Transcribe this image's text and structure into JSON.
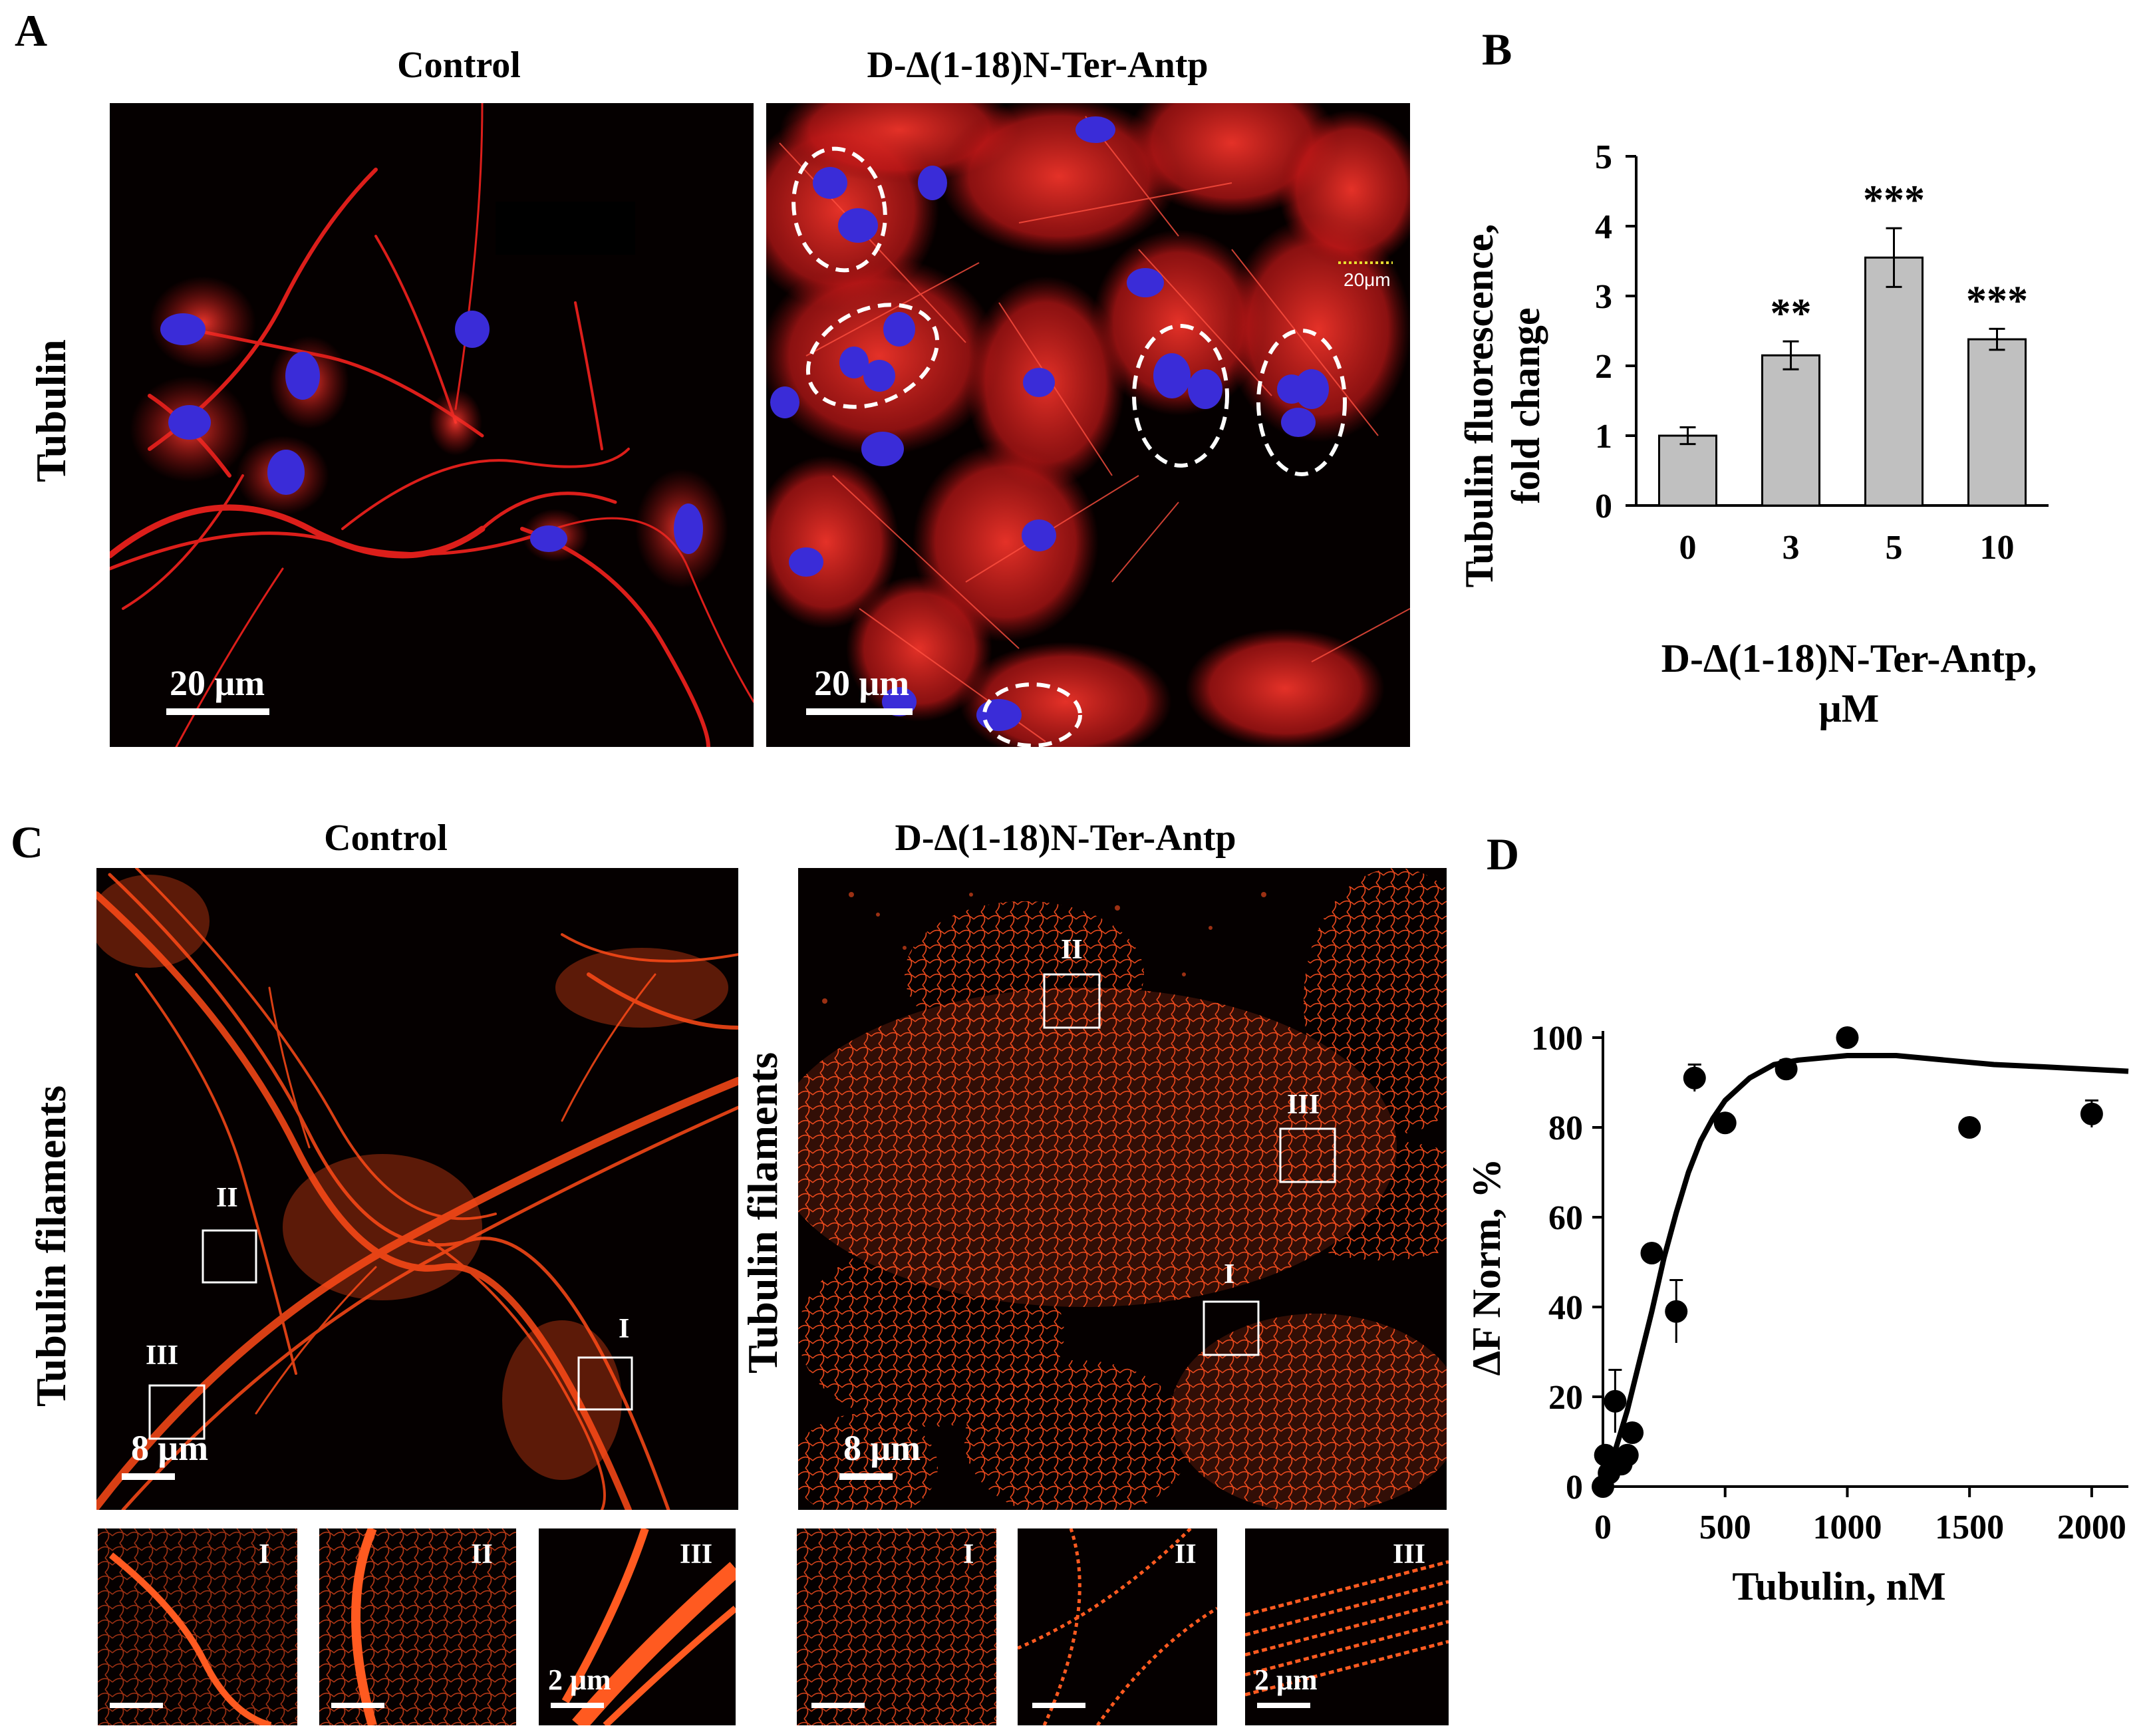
{
  "panels": {
    "A": {
      "letter": "A",
      "row_label": "Tubulin",
      "left_title": "Control",
      "right_title": "D-Δ(1-18)N-Ter-Antp",
      "scale_left": "20 μm",
      "scale_right": "20 μm",
      "inset_scale": "20μm"
    },
    "B": {
      "letter": "B",
      "xlabel_line1": "D-Δ(1-18)N-Ter-Antp,",
      "xlabel_line2": "μM",
      "ylabel_line1": "Tubulin fluorescence,",
      "ylabel_line2": "fold change"
    },
    "C": {
      "letter": "C",
      "row_label_left": "Tubulin filaments",
      "row_label_right": "Tubulin filaments",
      "left_title": "Control",
      "right_title": "D-Δ(1-18)N-Ter-Antp",
      "scale_left": "8 μm",
      "scale_right": "8 μm",
      "inset_scale_left": "2 μm",
      "inset_scale_right": "2 μm",
      "box_labels": [
        "I",
        "II",
        "III"
      ]
    },
    "D": {
      "letter": "D",
      "xlabel": "Tubulin, nM",
      "ylabel": "ΔF Norm, %"
    }
  },
  "colors": {
    "tubulin": "#e8201c",
    "nucleus": "#3a2cd8",
    "filament": "#ff4a18",
    "bar_fill": "#c0c0c0"
  },
  "chart_data": [
    {
      "id": "B",
      "type": "bar",
      "categories": [
        "0",
        "3",
        "5",
        "10"
      ],
      "values": [
        1.0,
        2.15,
        3.55,
        2.38
      ],
      "errors": [
        0.12,
        0.2,
        0.42,
        0.15
      ],
      "annotations": [
        "",
        "**",
        "***",
        "***"
      ],
      "ylim": [
        0,
        5
      ],
      "yticks": [
        0,
        1,
        2,
        3,
        4,
        5
      ],
      "grid": false
    },
    {
      "id": "D",
      "type": "scatter",
      "points": [
        {
          "x": 0,
          "y": 0,
          "err": 0
        },
        {
          "x": 10,
          "y": 7,
          "err": 0
        },
        {
          "x": 25,
          "y": 3,
          "err": 0
        },
        {
          "x": 50,
          "y": 19,
          "err": 7
        },
        {
          "x": 75,
          "y": 5,
          "err": 0
        },
        {
          "x": 100,
          "y": 7,
          "err": 0
        },
        {
          "x": 120,
          "y": 12,
          "err": 0
        },
        {
          "x": 200,
          "y": 52,
          "err": 0
        },
        {
          "x": 300,
          "y": 39,
          "err": 7
        },
        {
          "x": 375,
          "y": 91,
          "err": 3
        },
        {
          "x": 500,
          "y": 81,
          "err": 0
        },
        {
          "x": 750,
          "y": 93,
          "err": 2
        },
        {
          "x": 1000,
          "y": 100,
          "err": 0
        },
        {
          "x": 1500,
          "y": 80,
          "err": 0
        },
        {
          "x": 2000,
          "y": 83,
          "err": 3
        }
      ],
      "fit": [
        {
          "x": 0,
          "y": 0
        },
        {
          "x": 50,
          "y": 8
        },
        {
          "x": 100,
          "y": 17
        },
        {
          "x": 150,
          "y": 28
        },
        {
          "x": 200,
          "y": 39
        },
        {
          "x": 250,
          "y": 51
        },
        {
          "x": 300,
          "y": 61
        },
        {
          "x": 350,
          "y": 70
        },
        {
          "x": 400,
          "y": 77
        },
        {
          "x": 450,
          "y": 82
        },
        {
          "x": 500,
          "y": 86
        },
        {
          "x": 600,
          "y": 91
        },
        {
          "x": 700,
          "y": 94
        },
        {
          "x": 800,
          "y": 95
        },
        {
          "x": 1000,
          "y": 96
        },
        {
          "x": 1200,
          "y": 96
        },
        {
          "x": 1400,
          "y": 95
        },
        {
          "x": 1600,
          "y": 94
        },
        {
          "x": 1800,
          "y": 93.5
        },
        {
          "x": 2150,
          "y": 92.5
        }
      ],
      "xlim": [
        0,
        2150
      ],
      "ylim": [
        0,
        100
      ],
      "xticks": [
        0,
        500,
        1000,
        1500,
        2000
      ],
      "yticks": [
        0,
        20,
        40,
        60,
        80,
        100
      ],
      "grid": false
    }
  ]
}
